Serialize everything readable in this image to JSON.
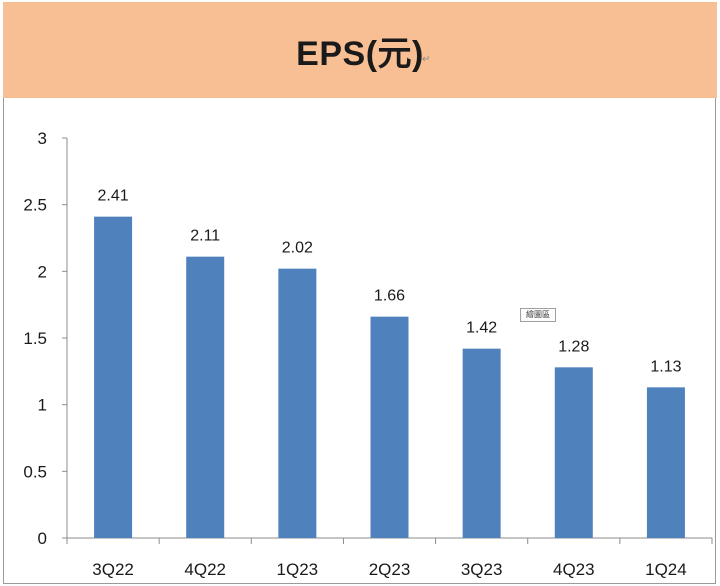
{
  "chart_data": {
    "type": "bar",
    "title": "EPS(元)",
    "xlabel": "",
    "ylabel": "",
    "categories": [
      "3Q22",
      "4Q22",
      "1Q23",
      "2Q23",
      "3Q23",
      "4Q23",
      "1Q24"
    ],
    "values": [
      2.41,
      2.11,
      2.02,
      1.66,
      1.42,
      1.28,
      1.13
    ],
    "data_labels": [
      "2.41",
      "2.11",
      "2.02",
      "1.66",
      "1.42",
      "1.28",
      "1.13"
    ],
    "ylim": [
      0,
      3
    ],
    "yticks": [
      0,
      0.5,
      1,
      1.5,
      2,
      2.5,
      3
    ],
    "ytick_labels": [
      "0",
      "0.5",
      "1",
      "1.5",
      "2",
      "2.5",
      "3"
    ],
    "grid": false,
    "legend": "none",
    "bar_color": "#4f81bd",
    "header_color": "#f8bf94"
  },
  "annotations": {
    "return_mark": "↵",
    "drawing_area_tag": "繪圖區"
  }
}
